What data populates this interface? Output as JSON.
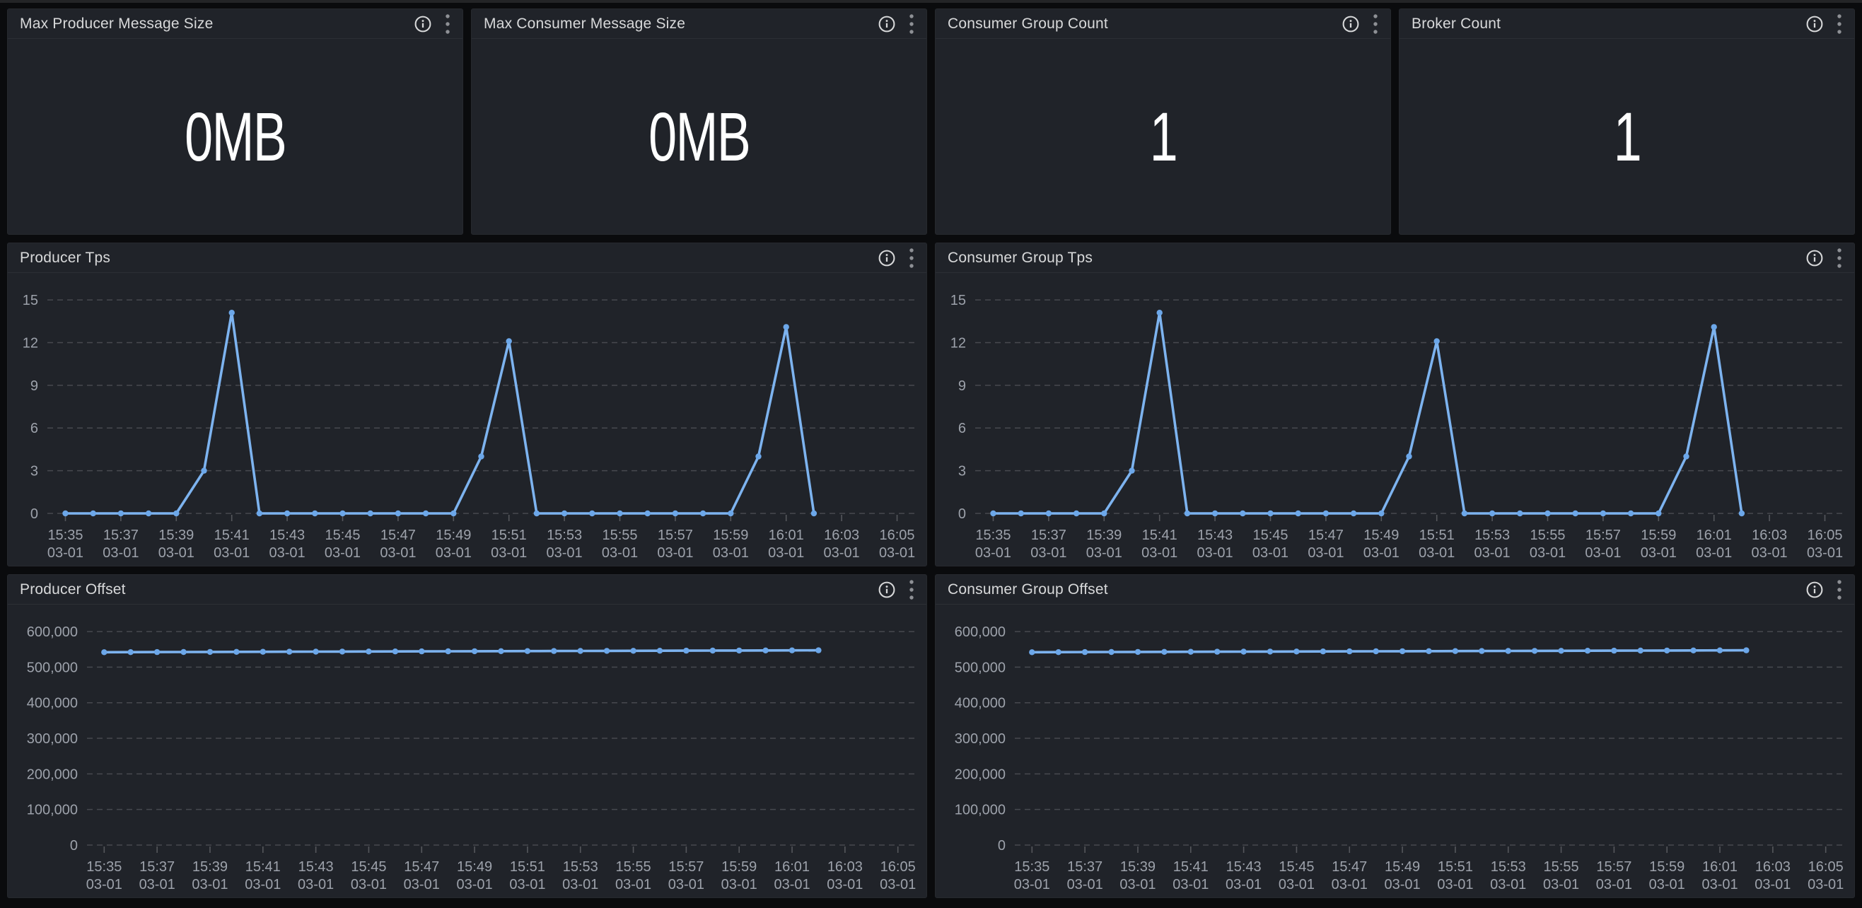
{
  "panels": [
    {
      "id": "max-producer-message-size",
      "type": "stat",
      "title": "Max Producer Message Size",
      "value": "0MB"
    },
    {
      "id": "max-consumer-message-size",
      "type": "stat",
      "title": "Max Consumer Message Size",
      "value": "0MB"
    },
    {
      "id": "consumer-group-count",
      "type": "stat",
      "title": "Consumer Group Count",
      "value": "1"
    },
    {
      "id": "broker-count",
      "type": "stat",
      "title": "Broker Count",
      "value": "1"
    },
    {
      "id": "producer-tps",
      "type": "timeseries",
      "title": "Producer Tps"
    },
    {
      "id": "consumer-group-tps",
      "type": "timeseries",
      "title": "Consumer Group Tps"
    },
    {
      "id": "producer-offset",
      "type": "timeseries",
      "title": "Producer Offset"
    },
    {
      "id": "consumer-group-offset",
      "type": "timeseries",
      "title": "Consumer Group Offset"
    }
  ],
  "icons": {
    "info": "info-circle",
    "menu": "kebab-vertical"
  },
  "colors": {
    "series_line": "#7DB3EF",
    "series_point": "#6CA7E9",
    "grid_line": "#47494F",
    "tick_mark": "#55575C",
    "axis_text": "#9DA2AB",
    "panel_title": "#D8D9DA",
    "stat_value_text": "#FFFFFF",
    "info_icon": "#D8D9DA",
    "menu_icon": "#8E9095",
    "panel_background": "#202329",
    "page_background": "#0A0B0D"
  },
  "chart_data": [
    {
      "panel": "producer-tps",
      "type": "line",
      "title": "Producer Tps",
      "x": [
        "15:35",
        "15:36",
        "15:37",
        "15:38",
        "15:39",
        "15:40",
        "15:41",
        "15:42",
        "15:43",
        "15:44",
        "15:45",
        "15:46",
        "15:47",
        "15:48",
        "15:49",
        "15:50",
        "15:51",
        "15:52",
        "15:53",
        "15:54",
        "15:55",
        "15:56",
        "15:57",
        "15:58",
        "15:59",
        "16:00",
        "16:01",
        "16:02"
      ],
      "values": [
        0,
        0,
        0,
        0,
        0,
        3,
        14.1,
        0,
        0,
        0,
        0,
        0,
        0,
        0,
        0,
        4,
        12.1,
        0,
        0,
        0,
        0,
        0,
        0,
        0,
        0,
        4,
        13.1,
        0
      ],
      "x_tick_labels": [
        "15:35",
        "15:37",
        "15:39",
        "15:41",
        "15:43",
        "15:45",
        "15:47",
        "15:49",
        "15:51",
        "15:53",
        "15:55",
        "15:57",
        "15:59",
        "16:01",
        "16:03",
        "16:05"
      ],
      "x_tick_sublabel": "03-01",
      "yticks": [
        0,
        3,
        6,
        9,
        12,
        15
      ],
      "ylim": [
        0,
        15
      ],
      "grid": true,
      "legend": "none"
    },
    {
      "panel": "consumer-group-tps",
      "type": "line",
      "title": "Consumer Group Tps",
      "x": [
        "15:35",
        "15:36",
        "15:37",
        "15:38",
        "15:39",
        "15:40",
        "15:41",
        "15:42",
        "15:43",
        "15:44",
        "15:45",
        "15:46",
        "15:47",
        "15:48",
        "15:49",
        "15:50",
        "15:51",
        "15:52",
        "15:53",
        "15:54",
        "15:55",
        "15:56",
        "15:57",
        "15:58",
        "15:59",
        "16:00",
        "16:01",
        "16:02"
      ],
      "values": [
        0,
        0,
        0,
        0,
        0,
        3,
        14.1,
        0,
        0,
        0,
        0,
        0,
        0,
        0,
        0,
        4,
        12.1,
        0,
        0,
        0,
        0,
        0,
        0,
        0,
        0,
        4,
        13.1,
        0
      ],
      "x_tick_labels": [
        "15:35",
        "15:37",
        "15:39",
        "15:41",
        "15:43",
        "15:45",
        "15:47",
        "15:49",
        "15:51",
        "15:53",
        "15:55",
        "15:57",
        "15:59",
        "16:01",
        "16:03",
        "16:05"
      ],
      "x_tick_sublabel": "03-01",
      "yticks": [
        0,
        3,
        6,
        9,
        12,
        15
      ],
      "ylim": [
        0,
        15
      ],
      "grid": true,
      "legend": "none"
    },
    {
      "panel": "producer-offset",
      "type": "line",
      "title": "Producer Offset",
      "x": [
        "15:35",
        "15:36",
        "15:37",
        "15:38",
        "15:39",
        "15:40",
        "15:41",
        "15:42",
        "15:43",
        "15:44",
        "15:45",
        "15:46",
        "15:47",
        "15:48",
        "15:49",
        "15:50",
        "15:51",
        "15:52",
        "15:53",
        "15:54",
        "15:55",
        "15:56",
        "15:57",
        "15:58",
        "15:59",
        "16:00",
        "16:01",
        "16:02"
      ],
      "values": [
        541900,
        542100,
        542300,
        542500,
        542700,
        542900,
        543100,
        543300,
        543500,
        543700,
        543900,
        544100,
        544300,
        544500,
        544700,
        544900,
        545100,
        545300,
        545500,
        545700,
        545900,
        546100,
        546300,
        546500,
        546700,
        546900,
        547100,
        547300
      ],
      "x_tick_labels": [
        "15:35",
        "15:37",
        "15:39",
        "15:41",
        "15:43",
        "15:45",
        "15:47",
        "15:49",
        "15:51",
        "15:53",
        "15:55",
        "15:57",
        "15:59",
        "16:01",
        "16:03",
        "16:05"
      ],
      "x_tick_sublabel": "03-01",
      "yticks": [
        0,
        100000,
        200000,
        300000,
        400000,
        500000,
        600000
      ],
      "ylim": [
        0,
        600000
      ],
      "grid": true,
      "legend": "none"
    },
    {
      "panel": "consumer-group-offset",
      "type": "line",
      "title": "Consumer Group Offset",
      "x": [
        "15:35",
        "15:36",
        "15:37",
        "15:38",
        "15:39",
        "15:40",
        "15:41",
        "15:42",
        "15:43",
        "15:44",
        "15:45",
        "15:46",
        "15:47",
        "15:48",
        "15:49",
        "15:50",
        "15:51",
        "15:52",
        "15:53",
        "15:54",
        "15:55",
        "15:56",
        "15:57",
        "15:58",
        "15:59",
        "16:00",
        "16:01",
        "16:02"
      ],
      "values": [
        541900,
        542100,
        542300,
        542500,
        542700,
        542900,
        543100,
        543300,
        543500,
        543700,
        543900,
        544100,
        544300,
        544500,
        544700,
        544900,
        545100,
        545300,
        545500,
        545700,
        545900,
        546100,
        546300,
        546500,
        546700,
        546900,
        547100,
        547300
      ],
      "x_tick_labels": [
        "15:35",
        "15:37",
        "15:39",
        "15:41",
        "15:43",
        "15:45",
        "15:47",
        "15:49",
        "15:51",
        "15:53",
        "15:55",
        "15:57",
        "15:59",
        "16:01",
        "16:03",
        "16:05"
      ],
      "x_tick_sublabel": "03-01",
      "yticks": [
        0,
        100000,
        200000,
        300000,
        400000,
        500000,
        600000
      ],
      "ylim": [
        0,
        600000
      ],
      "grid": true,
      "legend": "none"
    }
  ]
}
